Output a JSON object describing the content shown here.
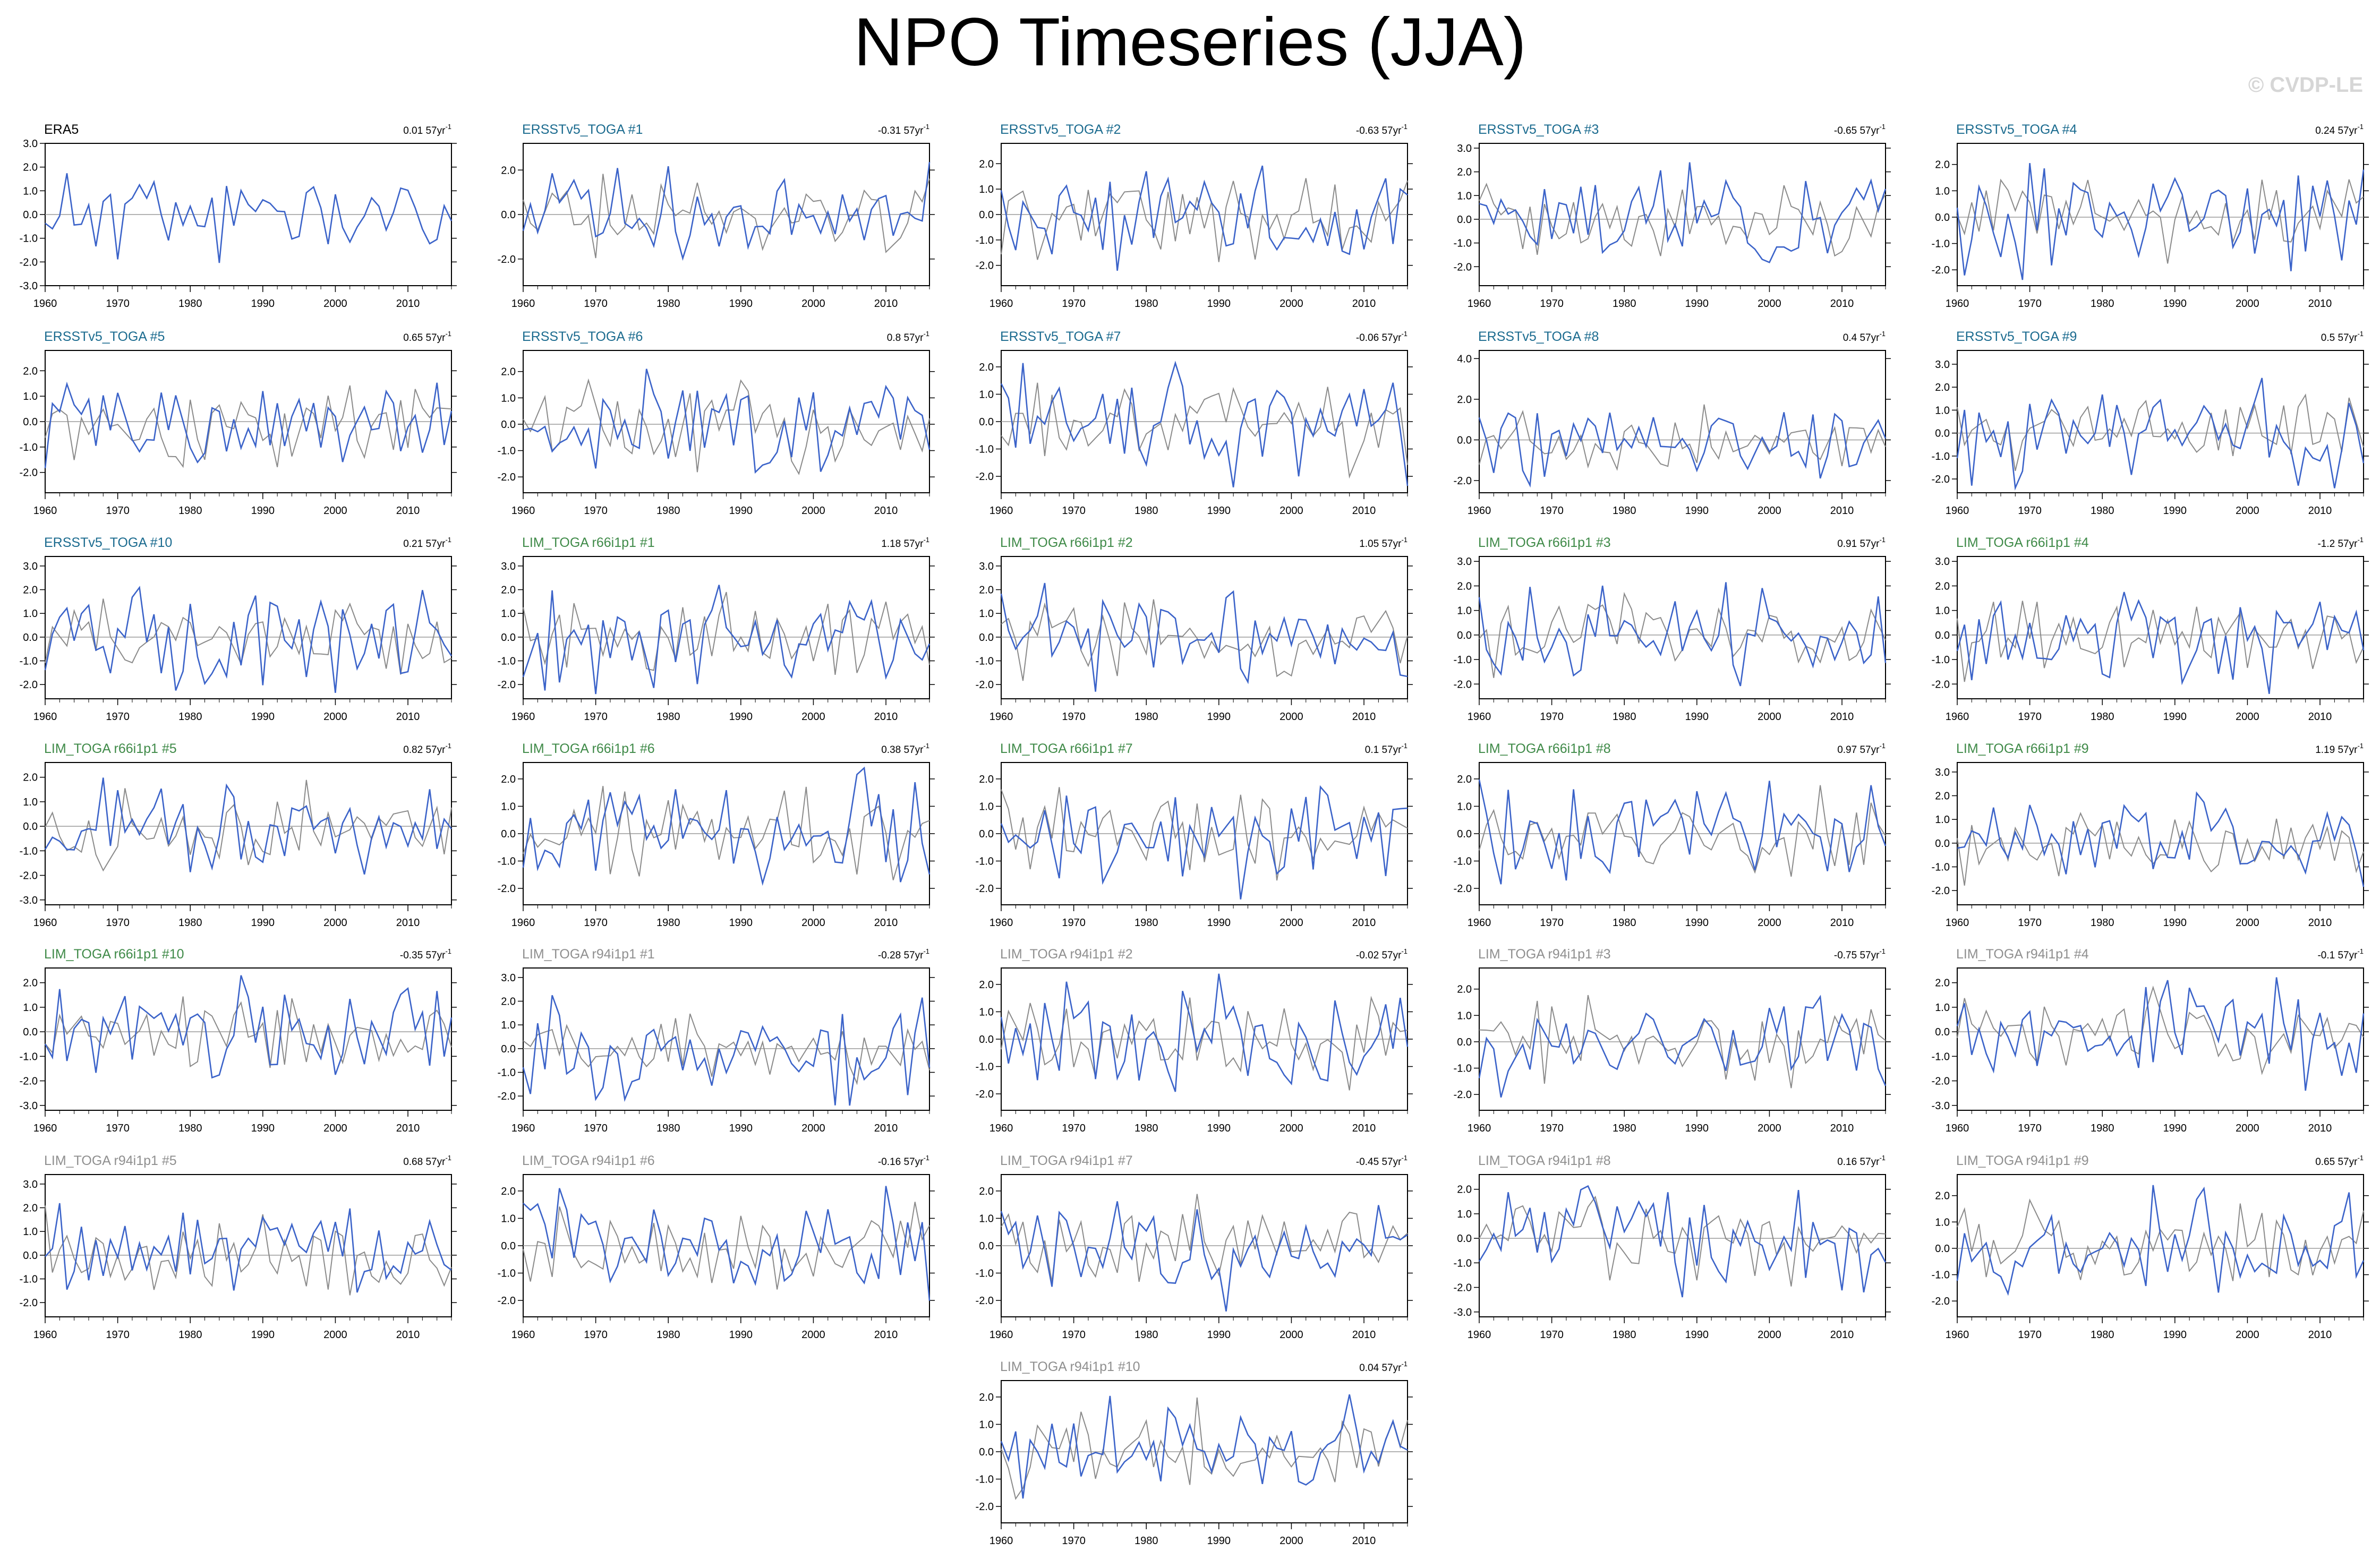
{
  "title": "NPO Timeseries (JJA)",
  "watermark": "© CVDP-LE",
  "colors": {
    "obs": "#000000",
    "ersst": "#1b6b8f",
    "lim66": "#3f8a48",
    "lim94": "#8f8f8f",
    "blue_line": "#3b63c9",
    "gray_line": "#8a8a8a"
  },
  "chart_data": [
    {
      "type": "line",
      "panel": "ERA5",
      "trend_value": "0.01",
      "trend_unit": "57yr",
      "trend_exp": "-1",
      "label_color": "obs",
      "x_start": 1960,
      "x_end": 2016,
      "xticks": [
        "1960",
        "1970",
        "1980",
        "1990",
        "2000",
        "2010"
      ],
      "yticks": [
        "3.0",
        "2.0",
        "1.0",
        "0.0",
        "-1.0",
        "-2.0",
        "-3.0"
      ],
      "ylim": [
        -3,
        3
      ],
      "seed": 11,
      "amp": 1.0
    },
    {
      "type": "line",
      "panel": "ERSSTv5_TOGA #1",
      "trend_value": "-0.31",
      "trend_unit": "57yr",
      "trend_exp": "-1",
      "label_color": "ersst",
      "x_start": 1960,
      "x_end": 2016,
      "xticks": [
        "1960",
        "1970",
        "1980",
        "1990",
        "2000",
        "2010"
      ],
      "yticks": [
        "2.0",
        "0.0",
        "-2.0"
      ],
      "ylim": [
        -3.2,
        3.2
      ],
      "seed": 12,
      "amp": 1.1
    },
    {
      "type": "line",
      "panel": "ERSSTv5_TOGA #2",
      "trend_value": "-0.63",
      "trend_unit": "57yr",
      "trend_exp": "-1",
      "label_color": "ersst",
      "x_start": 1960,
      "x_end": 2016,
      "xticks": [
        "1960",
        "1970",
        "1980",
        "1990",
        "2000",
        "2010"
      ],
      "yticks": [
        "2.0",
        "1.0",
        "0.0",
        "-1.0",
        "-2.0"
      ],
      "ylim": [
        -2.8,
        2.8
      ],
      "seed": 13,
      "amp": 1.0
    },
    {
      "type": "line",
      "panel": "ERSSTv5_TOGA #3",
      "trend_value": "-0.65",
      "trend_unit": "57yr",
      "trend_exp": "-1",
      "label_color": "ersst",
      "x_start": 1960,
      "x_end": 2016,
      "xticks": [
        "1960",
        "1970",
        "1980",
        "1990",
        "2000",
        "2010"
      ],
      "yticks": [
        "3.0",
        "2.0",
        "1.0",
        "0.0",
        "-1.0",
        "-2.0"
      ],
      "ylim": [
        -2.8,
        3.2
      ],
      "seed": 14,
      "amp": 1.0
    },
    {
      "type": "line",
      "panel": "ERSSTv5_TOGA #4",
      "trend_value": "0.24",
      "trend_unit": "57yr",
      "trend_exp": "-1",
      "label_color": "ersst",
      "x_start": 1960,
      "x_end": 2016,
      "xticks": [
        "1960",
        "1970",
        "1980",
        "1990",
        "2000",
        "2010"
      ],
      "yticks": [
        "2.0",
        "1.0",
        "0.0",
        "-1.0",
        "-2.0"
      ],
      "ylim": [
        -2.6,
        2.8
      ],
      "seed": 15,
      "amp": 1.0
    },
    {
      "type": "line",
      "panel": "ERSSTv5_TOGA #5",
      "trend_value": "0.65",
      "trend_unit": "57yr",
      "trend_exp": "-1",
      "label_color": "ersst",
      "x_start": 1960,
      "x_end": 2016,
      "xticks": [
        "1960",
        "1970",
        "1980",
        "1990",
        "2000",
        "2010"
      ],
      "yticks": [
        "2.0",
        "1.0",
        "0.0",
        "-1.0",
        "-2.0"
      ],
      "ylim": [
        -2.8,
        2.8
      ],
      "seed": 16,
      "amp": 1.0
    },
    {
      "type": "line",
      "panel": "ERSSTv5_TOGA #6",
      "trend_value": "0.8",
      "trend_unit": "57yr",
      "trend_exp": "-1",
      "label_color": "ersst",
      "x_start": 1960,
      "x_end": 2016,
      "xticks": [
        "1960",
        "1970",
        "1980",
        "1990",
        "2000",
        "2010"
      ],
      "yticks": [
        "2.0",
        "1.0",
        "0.0",
        "-1.0",
        "-2.0"
      ],
      "ylim": [
        -2.6,
        2.8
      ],
      "seed": 17,
      "amp": 1.0
    },
    {
      "type": "line",
      "panel": "ERSSTv5_TOGA #7",
      "trend_value": "-0.06",
      "trend_unit": "57yr",
      "trend_exp": "-1",
      "label_color": "ersst",
      "x_start": 1960,
      "x_end": 2016,
      "xticks": [
        "1960",
        "1970",
        "1980",
        "1990",
        "2000",
        "2010"
      ],
      "yticks": [
        "2.0",
        "1.0",
        "0.0",
        "-1.0",
        "-2.0"
      ],
      "ylim": [
        -2.6,
        2.6
      ],
      "seed": 18,
      "amp": 1.0
    },
    {
      "type": "line",
      "panel": "ERSSTv5_TOGA #8",
      "trend_value": "0.4",
      "trend_unit": "57yr",
      "trend_exp": "-1",
      "label_color": "ersst",
      "x_start": 1960,
      "x_end": 2016,
      "xticks": [
        "1960",
        "1970",
        "1980",
        "1990",
        "2000",
        "2010"
      ],
      "yticks": [
        "4.0",
        "2.0",
        "0.0",
        "-2.0"
      ],
      "ylim": [
        -2.6,
        4.4
      ],
      "seed": 19,
      "amp": 1.0
    },
    {
      "type": "line",
      "panel": "ERSSTv5_TOGA #9",
      "trend_value": "0.5",
      "trend_unit": "57yr",
      "trend_exp": "-1",
      "label_color": "ersst",
      "x_start": 1960,
      "x_end": 2016,
      "xticks": [
        "1960",
        "1970",
        "1980",
        "1990",
        "2000",
        "2010"
      ],
      "yticks": [
        "3.0",
        "2.0",
        "1.0",
        "0.0",
        "-1.0",
        "-2.0"
      ],
      "ylim": [
        -2.6,
        3.6
      ],
      "seed": 20,
      "amp": 1.0
    },
    {
      "type": "line",
      "panel": "ERSSTv5_TOGA #10",
      "trend_value": "0.21",
      "trend_unit": "57yr",
      "trend_exp": "-1",
      "label_color": "ersst",
      "x_start": 1960,
      "x_end": 2016,
      "xticks": [
        "1960",
        "1970",
        "1980",
        "1990",
        "2000",
        "2010"
      ],
      "yticks": [
        "3.0",
        "2.0",
        "1.0",
        "0.0",
        "-1.0",
        "-2.0"
      ],
      "ylim": [
        -2.6,
        3.4
      ],
      "seed": 21,
      "amp": 1.0
    },
    {
      "type": "line",
      "panel": "LIM_TOGA r66i1p1 #1",
      "trend_value": "1.18",
      "trend_unit": "57yr",
      "trend_exp": "-1",
      "label_color": "lim66",
      "x_start": 1960,
      "x_end": 2016,
      "xticks": [
        "1960",
        "1970",
        "1980",
        "1990",
        "2000",
        "2010"
      ],
      "yticks": [
        "3.0",
        "2.0",
        "1.0",
        "0.0",
        "-1.0",
        "-2.0"
      ],
      "ylim": [
        -2.6,
        3.4
      ],
      "seed": 22,
      "amp": 1.0
    },
    {
      "type": "line",
      "panel": "LIM_TOGA r66i1p1 #2",
      "trend_value": "1.05",
      "trend_unit": "57yr",
      "trend_exp": "-1",
      "label_color": "lim66",
      "x_start": 1960,
      "x_end": 2016,
      "xticks": [
        "1960",
        "1970",
        "1980",
        "1990",
        "2000",
        "2010"
      ],
      "yticks": [
        "3.0",
        "2.0",
        "1.0",
        "0.0",
        "-1.0",
        "-2.0"
      ],
      "ylim": [
        -2.6,
        3.4
      ],
      "seed": 23,
      "amp": 1.0
    },
    {
      "type": "line",
      "panel": "LIM_TOGA r66i1p1 #3",
      "trend_value": "0.91",
      "trend_unit": "57yr",
      "trend_exp": "-1",
      "label_color": "lim66",
      "x_start": 1960,
      "x_end": 2016,
      "xticks": [
        "1960",
        "1970",
        "1980",
        "1990",
        "2000",
        "2010"
      ],
      "yticks": [
        "3.0",
        "2.0",
        "1.0",
        "0.0",
        "-1.0",
        "-2.0"
      ],
      "ylim": [
        -2.6,
        3.2
      ],
      "seed": 24,
      "amp": 1.0
    },
    {
      "type": "line",
      "panel": "LIM_TOGA r66i1p1 #4",
      "trend_value": "-1.2",
      "trend_unit": "57yr",
      "trend_exp": "-1",
      "label_color": "lim66",
      "x_start": 1960,
      "x_end": 2016,
      "xticks": [
        "1960",
        "1970",
        "1980",
        "1990",
        "2000",
        "2010"
      ],
      "yticks": [
        "3.0",
        "2.0",
        "1.0",
        "0.0",
        "-1.0",
        "-2.0"
      ],
      "ylim": [
        -2.6,
        3.2
      ],
      "seed": 25,
      "amp": 1.0
    },
    {
      "type": "line",
      "panel": "LIM_TOGA r66i1p1 #5",
      "trend_value": "0.82",
      "trend_unit": "57yr",
      "trend_exp": "-1",
      "label_color": "lim66",
      "x_start": 1960,
      "x_end": 2016,
      "xticks": [
        "1960",
        "1970",
        "1980",
        "1990",
        "2000",
        "2010"
      ],
      "yticks": [
        "2.0",
        "1.0",
        "0.0",
        "-1.0",
        "-2.0",
        "-3.0"
      ],
      "ylim": [
        -3.2,
        2.6
      ],
      "seed": 26,
      "amp": 1.0
    },
    {
      "type": "line",
      "panel": "LIM_TOGA r66i1p1 #6",
      "trend_value": "0.38",
      "trend_unit": "57yr",
      "trend_exp": "-1",
      "label_color": "lim66",
      "x_start": 1960,
      "x_end": 2016,
      "xticks": [
        "1960",
        "1970",
        "1980",
        "1990",
        "2000",
        "2010"
      ],
      "yticks": [
        "2.0",
        "1.0",
        "0.0",
        "-1.0",
        "-2.0"
      ],
      "ylim": [
        -2.6,
        2.6
      ],
      "seed": 27,
      "amp": 1.0
    },
    {
      "type": "line",
      "panel": "LIM_TOGA r66i1p1 #7",
      "trend_value": "0.1",
      "trend_unit": "57yr",
      "trend_exp": "-1",
      "label_color": "lim66",
      "x_start": 1960,
      "x_end": 2016,
      "xticks": [
        "1960",
        "1970",
        "1980",
        "1990",
        "2000",
        "2010"
      ],
      "yticks": [
        "2.0",
        "1.0",
        "0.0",
        "-1.0",
        "-2.0"
      ],
      "ylim": [
        -2.6,
        2.6
      ],
      "seed": 28,
      "amp": 1.0
    },
    {
      "type": "line",
      "panel": "LIM_TOGA r66i1p1 #8",
      "trend_value": "0.97",
      "trend_unit": "57yr",
      "trend_exp": "-1",
      "label_color": "lim66",
      "x_start": 1960,
      "x_end": 2016,
      "xticks": [
        "1960",
        "1970",
        "1980",
        "1990",
        "2000",
        "2010"
      ],
      "yticks": [
        "2.0",
        "1.0",
        "0.0",
        "-1.0",
        "-2.0"
      ],
      "ylim": [
        -2.6,
        2.6
      ],
      "seed": 29,
      "amp": 1.0
    },
    {
      "type": "line",
      "panel": "LIM_TOGA r66i1p1 #9",
      "trend_value": "1.19",
      "trend_unit": "57yr",
      "trend_exp": "-1",
      "label_color": "lim66",
      "x_start": 1960,
      "x_end": 2016,
      "xticks": [
        "1960",
        "1970",
        "1980",
        "1990",
        "2000",
        "2010"
      ],
      "yticks": [
        "3.0",
        "2.0",
        "1.0",
        "0.0",
        "-1.0",
        "-2.0"
      ],
      "ylim": [
        -2.6,
        3.4
      ],
      "seed": 30,
      "amp": 1.0
    },
    {
      "type": "line",
      "panel": "LIM_TOGA r66i1p1 #10",
      "trend_value": "-0.35",
      "trend_unit": "57yr",
      "trend_exp": "-1",
      "label_color": "lim66",
      "x_start": 1960,
      "x_end": 2016,
      "xticks": [
        "1960",
        "1970",
        "1980",
        "1990",
        "2000",
        "2010"
      ],
      "yticks": [
        "2.0",
        "1.0",
        "0.0",
        "-1.0",
        "-2.0",
        "-3.0"
      ],
      "ylim": [
        -3.2,
        2.6
      ],
      "seed": 31,
      "amp": 1.0
    },
    {
      "type": "line",
      "panel": "LIM_TOGA r94i1p1 #1",
      "trend_value": "-0.28",
      "trend_unit": "57yr",
      "trend_exp": "-1",
      "label_color": "lim94",
      "x_start": 1960,
      "x_end": 2016,
      "xticks": [
        "1960",
        "1970",
        "1980",
        "1990",
        "2000",
        "2010"
      ],
      "yticks": [
        "3.0",
        "2.0",
        "1.0",
        "0.0",
        "-1.0",
        "-2.0"
      ],
      "ylim": [
        -2.6,
        3.4
      ],
      "seed": 32,
      "amp": 1.0
    },
    {
      "type": "line",
      "panel": "LIM_TOGA r94i1p1 #2",
      "trend_value": "-0.02",
      "trend_unit": "57yr",
      "trend_exp": "-1",
      "label_color": "lim94",
      "x_start": 1960,
      "x_end": 2016,
      "xticks": [
        "1960",
        "1970",
        "1980",
        "1990",
        "2000",
        "2010"
      ],
      "yticks": [
        "2.0",
        "1.0",
        "0.0",
        "-1.0",
        "-2.0"
      ],
      "ylim": [
        -2.6,
        2.6
      ],
      "seed": 33,
      "amp": 1.0
    },
    {
      "type": "line",
      "panel": "LIM_TOGA r94i1p1 #3",
      "trend_value": "-0.75",
      "trend_unit": "57yr",
      "trend_exp": "-1",
      "label_color": "lim94",
      "x_start": 1960,
      "x_end": 2016,
      "xticks": [
        "1960",
        "1970",
        "1980",
        "1990",
        "2000",
        "2010"
      ],
      "yticks": [
        "2.0",
        "1.0",
        "0.0",
        "-1.0",
        "-2.0"
      ],
      "ylim": [
        -2.6,
        2.8
      ],
      "seed": 34,
      "amp": 1.0
    },
    {
      "type": "line",
      "panel": "LIM_TOGA r94i1p1 #4",
      "trend_value": "-0.1",
      "trend_unit": "57yr",
      "trend_exp": "-1",
      "label_color": "lim94",
      "x_start": 1960,
      "x_end": 2016,
      "xticks": [
        "1960",
        "1970",
        "1980",
        "1990",
        "2000",
        "2010"
      ],
      "yticks": [
        "2.0",
        "1.0",
        "0.0",
        "-1.0",
        "-2.0",
        "-3.0"
      ],
      "ylim": [
        -3.2,
        2.6
      ],
      "seed": 35,
      "amp": 1.0
    },
    {
      "type": "line",
      "panel": "LIM_TOGA r94i1p1 #5",
      "trend_value": "0.68",
      "trend_unit": "57yr",
      "trend_exp": "-1",
      "label_color": "lim94",
      "x_start": 1960,
      "x_end": 2016,
      "xticks": [
        "1960",
        "1970",
        "1980",
        "1990",
        "2000",
        "2010"
      ],
      "yticks": [
        "3.0",
        "2.0",
        "1.0",
        "0.0",
        "-1.0",
        "-2.0"
      ],
      "ylim": [
        -2.6,
        3.4
      ],
      "seed": 36,
      "amp": 1.0
    },
    {
      "type": "line",
      "panel": "LIM_TOGA r94i1p1 #6",
      "trend_value": "-0.16",
      "trend_unit": "57yr",
      "trend_exp": "-1",
      "label_color": "lim94",
      "x_start": 1960,
      "x_end": 2016,
      "xticks": [
        "1960",
        "1970",
        "1980",
        "1990",
        "2000",
        "2010"
      ],
      "yticks": [
        "2.0",
        "1.0",
        "0.0",
        "-1.0",
        "-2.0"
      ],
      "ylim": [
        -2.6,
        2.6
      ],
      "seed": 37,
      "amp": 1.0
    },
    {
      "type": "line",
      "panel": "LIM_TOGA r94i1p1 #7",
      "trend_value": "-0.45",
      "trend_unit": "57yr",
      "trend_exp": "-1",
      "label_color": "lim94",
      "x_start": 1960,
      "x_end": 2016,
      "xticks": [
        "1960",
        "1970",
        "1980",
        "1990",
        "2000",
        "2010"
      ],
      "yticks": [
        "2.0",
        "1.0",
        "0.0",
        "-1.0",
        "-2.0"
      ],
      "ylim": [
        -2.6,
        2.6
      ],
      "seed": 38,
      "amp": 1.0
    },
    {
      "type": "line",
      "panel": "LIM_TOGA r94i1p1 #8",
      "trend_value": "0.16",
      "trend_unit": "57yr",
      "trend_exp": "-1",
      "label_color": "lim94",
      "x_start": 1960,
      "x_end": 2016,
      "xticks": [
        "1960",
        "1970",
        "1980",
        "1990",
        "2000",
        "2010"
      ],
      "yticks": [
        "2.0",
        "1.0",
        "0.0",
        "-1.0",
        "-2.0",
        "-3.0"
      ],
      "ylim": [
        -3.2,
        2.6
      ],
      "seed": 39,
      "amp": 1.0
    },
    {
      "type": "line",
      "panel": "LIM_TOGA r94i1p1 #9",
      "trend_value": "0.65",
      "trend_unit": "57yr",
      "trend_exp": "-1",
      "label_color": "lim94",
      "x_start": 1960,
      "x_end": 2016,
      "xticks": [
        "1960",
        "1970",
        "1980",
        "1990",
        "2000",
        "2010"
      ],
      "yticks": [
        "2.0",
        "1.0",
        "0.0",
        "-1.0",
        "-2.0"
      ],
      "ylim": [
        -2.6,
        2.8
      ],
      "seed": 40,
      "amp": 1.0
    },
    {
      "type": "line",
      "panel": "LIM_TOGA r94i1p1 #10",
      "trend_value": "0.04",
      "trend_unit": "57yr",
      "trend_exp": "-1",
      "label_color": "lim94",
      "x_start": 1960,
      "x_end": 2016,
      "xticks": [
        "1960",
        "1970",
        "1980",
        "1990",
        "2000",
        "2010"
      ],
      "yticks": [
        "2.0",
        "1.0",
        "0.0",
        "-1.0",
        "-2.0"
      ],
      "ylim": [
        -2.6,
        2.6
      ],
      "seed": 41,
      "amp": 1.0
    }
  ]
}
